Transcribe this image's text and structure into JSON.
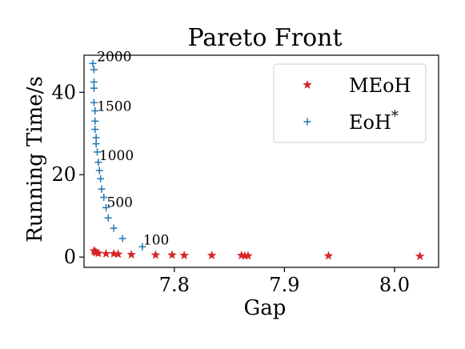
{
  "chart_data": {
    "type": "scatter",
    "title": "Pareto Front",
    "xlabel": "Gap",
    "ylabel": "Running Time/s",
    "xlim": [
      7.718,
      8.04
    ],
    "ylim": [
      -2.5,
      49
    ],
    "xticks": [
      7.8,
      7.9,
      8.0
    ],
    "yticks": [
      0,
      20,
      40
    ],
    "xtick_labels": [
      "7.8",
      "7.9",
      "8.0"
    ],
    "ytick_labels": [
      "0",
      "20",
      "40"
    ],
    "grid": false,
    "legend_position": "top-right",
    "series": [
      {
        "name": "MEoH",
        "marker": "star",
        "color": "#d62728",
        "points": [
          [
            7.727,
            1.5
          ],
          [
            7.728,
            1.3
          ],
          [
            7.729,
            1.1
          ],
          [
            7.731,
            0.9
          ],
          [
            7.738,
            0.8
          ],
          [
            7.745,
            0.8
          ],
          [
            7.749,
            0.7
          ],
          [
            7.761,
            0.6
          ],
          [
            7.783,
            0.5
          ],
          [
            7.798,
            0.5
          ],
          [
            7.809,
            0.4
          ],
          [
            7.834,
            0.4
          ],
          [
            7.861,
            0.4
          ],
          [
            7.864,
            0.3
          ],
          [
            7.867,
            0.3
          ],
          [
            7.94,
            0.3
          ],
          [
            8.023,
            0.2
          ]
        ]
      },
      {
        "name": "EoH",
        "name_superscript": "*",
        "marker": "plus",
        "color": "#1f77b4",
        "points": [
          [
            7.726,
            47.0
          ],
          [
            7.727,
            45.5
          ],
          [
            7.727,
            42.5
          ],
          [
            7.727,
            41.0
          ],
          [
            7.727,
            37.5
          ],
          [
            7.728,
            35.5
          ],
          [
            7.728,
            33.0
          ],
          [
            7.728,
            31.0
          ],
          [
            7.729,
            29.0
          ],
          [
            7.729,
            27.5
          ],
          [
            7.73,
            25.5
          ],
          [
            7.731,
            23.0
          ],
          [
            7.732,
            21.0
          ],
          [
            7.733,
            19.0
          ],
          [
            7.734,
            16.5
          ],
          [
            7.736,
            14.5
          ],
          [
            7.738,
            12.0
          ],
          [
            7.74,
            9.5
          ],
          [
            7.745,
            7.0
          ],
          [
            7.753,
            4.5
          ],
          [
            7.771,
            2.5
          ]
        ]
      }
    ],
    "annotations": [
      {
        "text": "2000",
        "x": 7.729,
        "y": 47.5
      },
      {
        "text": "1500",
        "x": 7.729,
        "y": 35.5
      },
      {
        "text": "1000",
        "x": 7.731,
        "y": 23.5
      },
      {
        "text": "500",
        "x": 7.738,
        "y": 12.2
      },
      {
        "text": "100",
        "x": 7.771,
        "y": 3.0
      }
    ]
  }
}
